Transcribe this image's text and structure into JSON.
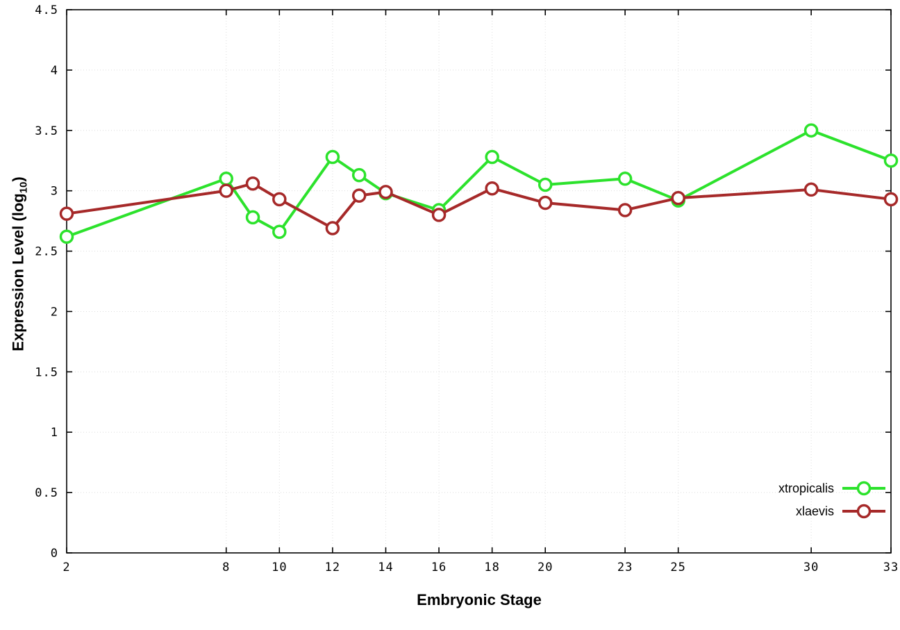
{
  "chart_data": {
    "type": "line",
    "title": "",
    "xlabel": "Embryonic Stage",
    "ylabel_main": "Expression Level (log",
    "ylabel_sub": "10",
    "ylabel_end": ")",
    "xlim": [
      2,
      33
    ],
    "ylim": [
      0,
      4.5
    ],
    "grid": true,
    "legend_position": "bottom-right-inside",
    "xticks": [
      2,
      8,
      10,
      12,
      14,
      16,
      18,
      20,
      23,
      25,
      30,
      33
    ],
    "xtick_labels": [
      "2",
      "8",
      "10",
      "12",
      "14",
      "16",
      "18",
      "20",
      "23",
      "25",
      "30",
      "33"
    ],
    "yticks": [
      0,
      0.5,
      1,
      1.5,
      2,
      2.5,
      3,
      3.5,
      4,
      4.5
    ],
    "ytick_labels": [
      "0",
      "0.5",
      "1",
      "1.5",
      "2",
      "2.5",
      "3",
      "3.5",
      "4",
      "4.5"
    ],
    "x": [
      2,
      8,
      9,
      10,
      12,
      13,
      14,
      16,
      18,
      20,
      23,
      25,
      30,
      33
    ],
    "series": [
      {
        "name": "xtropicalis",
        "color": "#2ce22c",
        "values": [
          2.62,
          3.1,
          2.78,
          2.66,
          3.28,
          3.13,
          2.98,
          2.84,
          3.28,
          3.05,
          3.1,
          2.92,
          3.5,
          3.25
        ]
      },
      {
        "name": "xlaevis",
        "color": "#a62929",
        "values": [
          2.81,
          3.0,
          3.06,
          2.93,
          2.69,
          2.96,
          2.99,
          2.8,
          3.02,
          2.9,
          2.84,
          2.94,
          3.01,
          2.93
        ]
      }
    ],
    "colors": {
      "axis": "#000000",
      "grid": "#dcdcdc",
      "background": "#ffffff"
    }
  }
}
